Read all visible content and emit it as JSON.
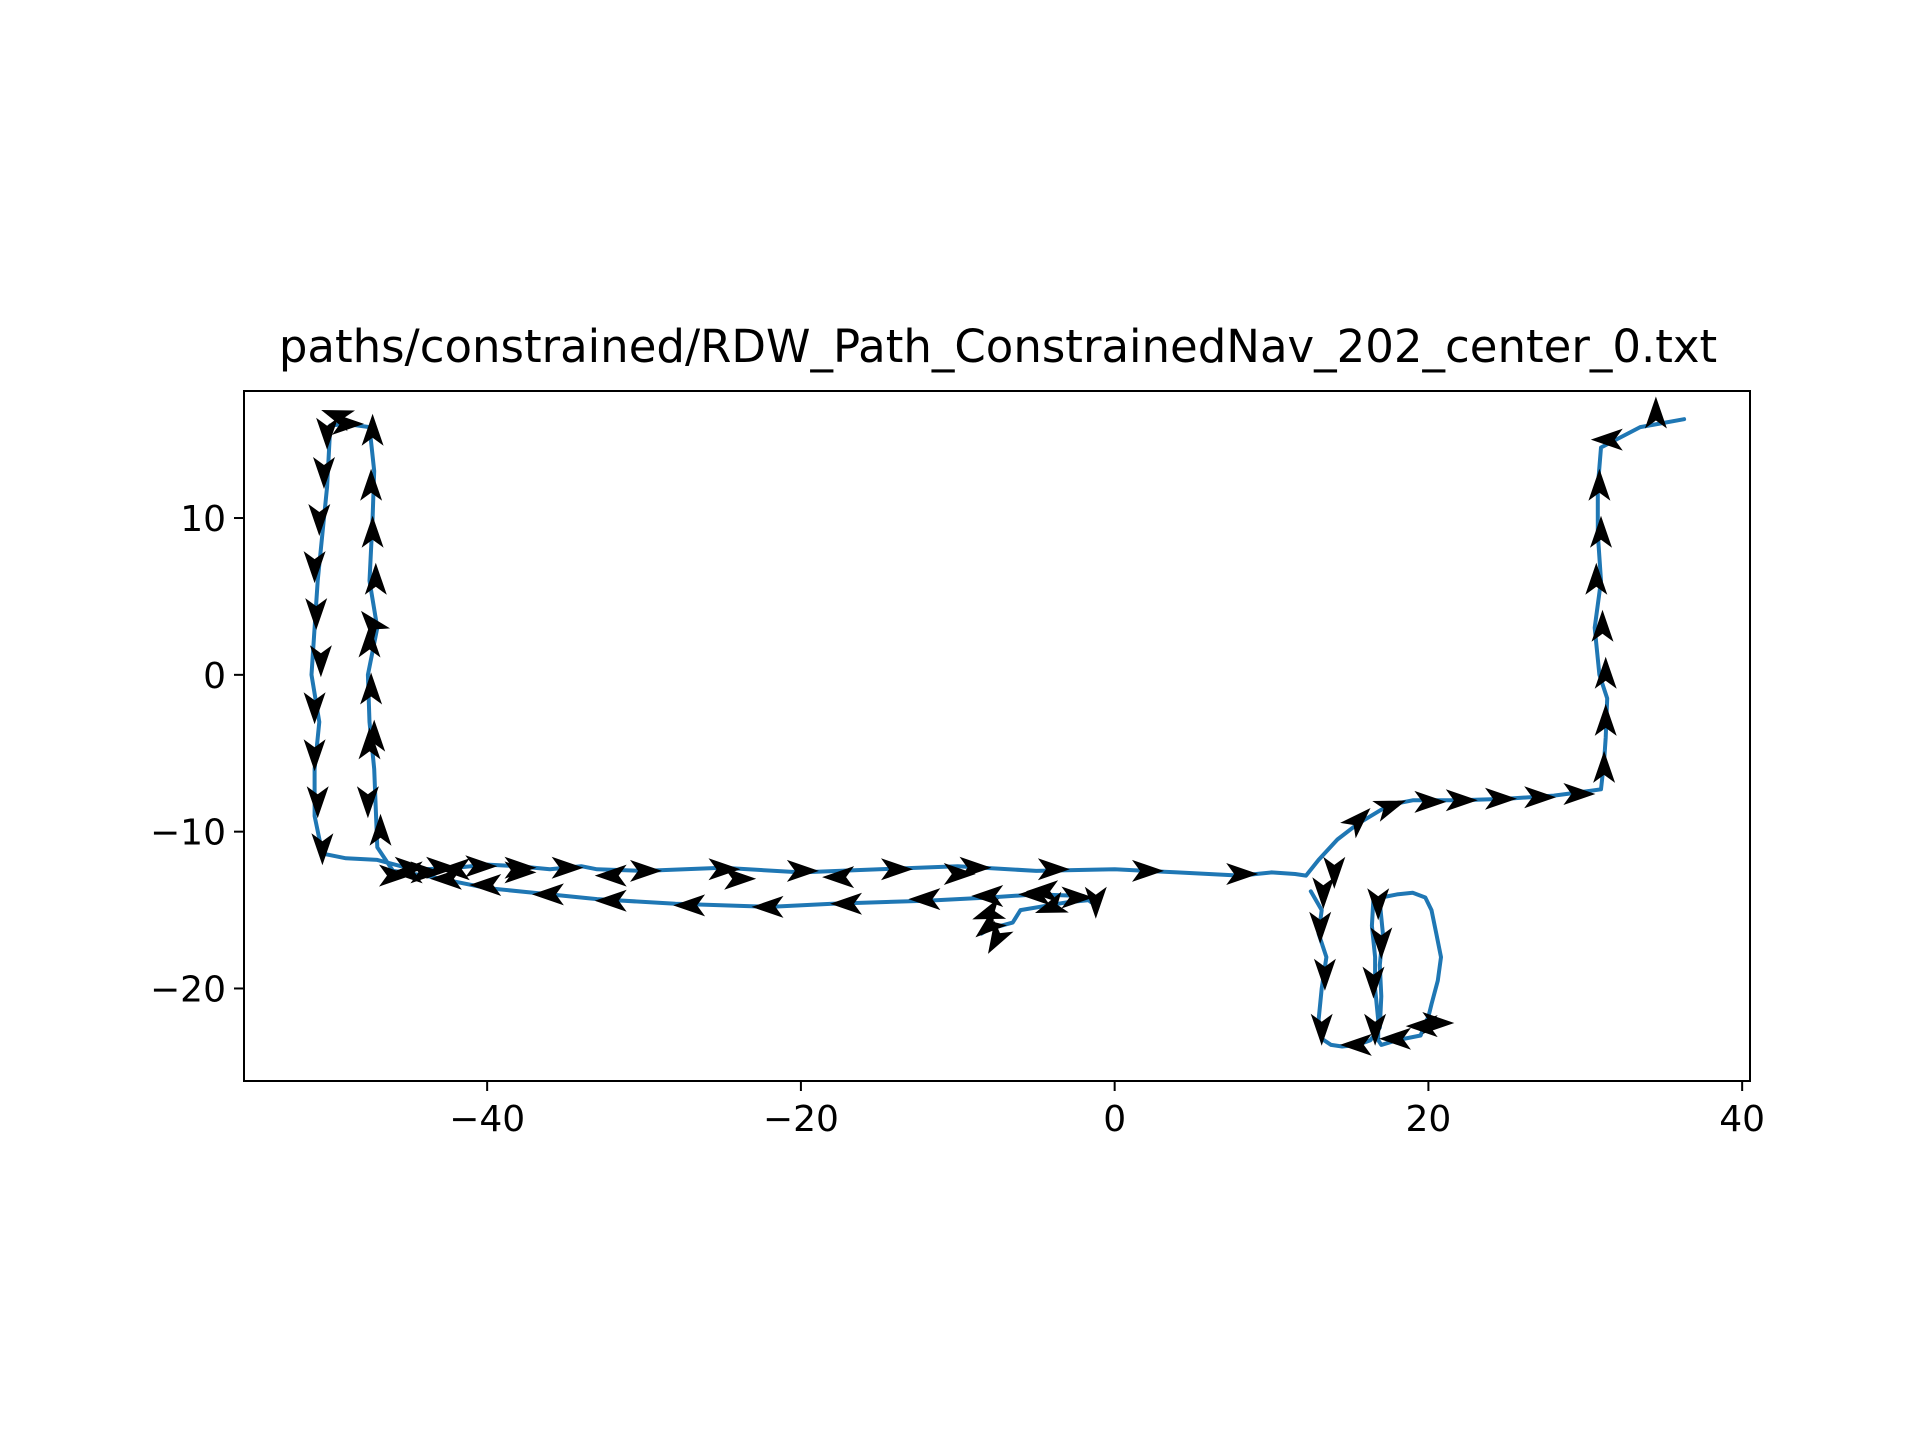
{
  "chart_data": {
    "type": "line",
    "title": "paths/constrained/RDW_Path_ConstrainedNav_202_center_0.txt",
    "xlabel": "",
    "ylabel": "",
    "xlim": [
      -55.5,
      40.5
    ],
    "ylim": [
      -25.9,
      18.1
    ],
    "x_ticks": [
      -40,
      -20,
      0,
      20,
      40
    ],
    "y_ticks": [
      -20,
      -10,
      0,
      10
    ],
    "x_tick_labels": [
      "−40",
      "−20",
      "0",
      "20",
      "40"
    ],
    "y_tick_labels": [
      "−20",
      "−10",
      "0",
      "10"
    ],
    "grid": false,
    "legend": "none",
    "colors": {
      "path": "#1f77b4",
      "arrows": "#000000",
      "axes": "#000000",
      "background": "#ffffff"
    },
    "series": [
      {
        "x": [
          36.3,
          33.5,
          31.0,
          30.8,
          30.8,
          31.0,
          30.6,
          30.9,
          31.4,
          31.3,
          31.2,
          31.0,
          30.3,
          28.0,
          25.0,
          22.0,
          19.0,
          18.0,
          17.0,
          15.5,
          14.2,
          13.0,
          12.2,
          11.5,
          10.0,
          8.0,
          4.0,
          0.0,
          -5.0,
          -10.0,
          -15.0,
          -20.0,
          -25.0,
          -30.0,
          -33.0,
          -34.0,
          -36.0,
          -38.0,
          -40.0,
          -42.0,
          -44.0,
          -45.5,
          -47.0,
          -49.0,
          -50.5,
          -51.0,
          -51.0,
          -50.7,
          -51.2,
          -51.0,
          -50.8,
          -50.5,
          -50.2,
          -50.0,
          -49.0,
          -47.5,
          -47.2,
          -47.3,
          -47.5,
          -47.0,
          -47.6,
          -47.5,
          -47.2,
          -47.0,
          -46.0,
          -44.0,
          -42.0,
          -40.0,
          -36.0,
          -33.0,
          -28.0,
          -22.0,
          -18.0,
          -12.0,
          -8.0,
          -5.0,
          -2.0,
          -1.5,
          -1.0,
          -3.0,
          -6.0,
          -6.5,
          -8.0,
          -8.5
        ],
        "y": [
          16.3,
          15.8,
          14.5,
          12.0,
          9.0,
          6.0,
          3.0,
          0.0,
          -1.5,
          -4.0,
          -5.5,
          -7.3,
          -7.4,
          -7.7,
          -7.9,
          -8.0,
          -8.0,
          -8.2,
          -8.6,
          -9.5,
          -10.5,
          -11.8,
          -12.8,
          -12.7,
          -12.6,
          -12.8,
          -12.6,
          -12.4,
          -12.5,
          -12.2,
          -12.4,
          -12.6,
          -12.3,
          -12.5,
          -12.4,
          -12.2,
          -12.4,
          -12.2,
          -12.1,
          -12.3,
          -12.4,
          -12.2,
          -11.8,
          -11.7,
          -11.4,
          -9.0,
          -6.0,
          -3.0,
          0.0,
          3.0,
          6.0,
          9.0,
          12.0,
          15.9,
          16.0,
          15.8,
          13.0,
          10.0,
          6.0,
          3.0,
          0.0,
          -3.0,
          -6.0,
          -11.0,
          -12.5,
          -12.8,
          -13.2,
          -13.6,
          -14.0,
          -14.3,
          -14.6,
          -14.8,
          -14.6,
          -14.4,
          -14.2,
          -14.0,
          -14.1,
          -14.5,
          -14.3,
          -14.5,
          -15.0,
          -15.8,
          -16.2,
          -16.5
        ]
      },
      {
        "x": [
          12.5,
          13.2,
          13.0,
          13.5,
          13.2,
          13.0,
          13.2,
          13.8,
          14.5,
          15.5,
          16.3,
          16.9,
          17.0,
          16.9,
          17.1,
          16.9,
          16.5,
          16.4,
          16.6,
          16.6,
          16.8,
          16.8,
          17.0,
          18.0,
          19.5,
          19.8,
          20.0,
          20.2,
          20.6,
          20.8,
          20.5,
          20.2,
          19.8,
          19.0,
          18.0,
          17.0
        ],
        "y": [
          -13.8,
          -15.0,
          -16.5,
          -18.0,
          -20.0,
          -22.0,
          -23.2,
          -23.6,
          -23.7,
          -23.6,
          -23.3,
          -22.5,
          -20.5,
          -18.5,
          -16.5,
          -14.5,
          -14.2,
          -16.0,
          -18.0,
          -20.0,
          -22.0,
          -23.3,
          -23.6,
          -23.3,
          -23.0,
          -22.2,
          -21.8,
          -21.0,
          -19.5,
          -18.0,
          -16.5,
          -15.0,
          -14.2,
          -13.9,
          -14.0,
          -14.2
        ]
      }
    ],
    "arrows": {
      "x": [
        34.5,
        31.5,
        30.9,
        31.0,
        30.7,
        31.1,
        31.3,
        31.3,
        31.2,
        29.5,
        27.0,
        24.5,
        22.0,
        20.0,
        17.5,
        15.5,
        13.3,
        14.0,
        16.8,
        17.0,
        16.5,
        16.6,
        19.7,
        20.5,
        18.0,
        15.5,
        13.2,
        13.4,
        13.1,
        8.0,
        2.0,
        -4.0,
        -9.0,
        -14.0,
        -20.0,
        -25.0,
        -30.0,
        -35.0,
        -38.0,
        -40.5,
        -43.0,
        -45.0,
        -50.5,
        -50.8,
        -51.0,
        -51.0,
        -50.6,
        -50.9,
        -51.0,
        -50.7,
        -50.4,
        -50.2,
        -49.0,
        -47.3,
        -47.4,
        -47.3,
        -47.1,
        -47.5,
        -47.4,
        -47.2,
        -46.8,
        -45.0,
        -42.5,
        -40.0,
        -36.0,
        -32.0,
        -27.0,
        -22.0,
        -17.0,
        -12.0,
        -8.0,
        -5.0,
        -2.5,
        -1.2,
        -4.0,
        -8.0,
        -7.5,
        -47.6,
        -47.5,
        -47.3,
        -46.0,
        -44.0,
        -42.0,
        -38.0,
        -32.0,
        -24.0,
        -17.5,
        -10.0,
        -4.5,
        -8.0,
        -49.5
      ],
      "y": [
        16.6,
        15.0,
        12.0,
        9.0,
        6.0,
        3.0,
        0.0,
        -3.0,
        -6.0,
        -7.6,
        -7.8,
        -7.9,
        -8.0,
        -8.1,
        -8.4,
        -9.3,
        -13.8,
        -12.5,
        -14.5,
        -17.0,
        -19.5,
        -22.5,
        -22.4,
        -22.2,
        -23.2,
        -23.6,
        -22.5,
        -19.0,
        -16.0,
        -12.7,
        -12.5,
        -12.4,
        -12.3,
        -12.4,
        -12.5,
        -12.4,
        -12.5,
        -12.3,
        -12.3,
        -12.2,
        -12.3,
        -12.3,
        -11.0,
        -8.0,
        -5.0,
        -2.0,
        1.0,
        4.0,
        7.0,
        10.0,
        13.0,
        15.5,
        16.0,
        15.5,
        12.0,
        9.0,
        6.0,
        2.0,
        -1.0,
        -4.0,
        -10.0,
        -12.6,
        -13.0,
        -13.4,
        -14.0,
        -14.4,
        -14.7,
        -14.8,
        -14.6,
        -14.3,
        -14.1,
        -14.0,
        -14.2,
        -14.4,
        -14.8,
        -16.0,
        -16.8,
        -8.0,
        -4.5,
        3.2,
        -12.8,
        -12.6,
        -12.4,
        -12.6,
        -12.8,
        -13.0,
        -12.9,
        -12.7,
        -13.8,
        -15.2,
        16.5
      ],
      "dir": [
        90,
        180,
        90,
        90,
        90,
        90,
        90,
        90,
        90,
        0,
        0,
        0,
        0,
        0,
        20,
        45,
        -90,
        -90,
        -90,
        -90,
        -90,
        -90,
        180,
        0,
        180,
        180,
        -90,
        -90,
        -90,
        0,
        0,
        0,
        0,
        0,
        0,
        0,
        0,
        0,
        0,
        0,
        0,
        0,
        -90,
        -90,
        -90,
        -90,
        -90,
        -90,
        -90,
        -90,
        -90,
        -90,
        0,
        90,
        90,
        90,
        90,
        90,
        90,
        90,
        90,
        180,
        180,
        180,
        180,
        180,
        180,
        180,
        180,
        180,
        180,
        180,
        0,
        -90,
        -160,
        -140,
        -120,
        -90,
        90,
        130,
        0,
        0,
        180,
        0,
        180,
        0,
        180,
        0,
        180,
        200,
        160
      ]
    }
  }
}
